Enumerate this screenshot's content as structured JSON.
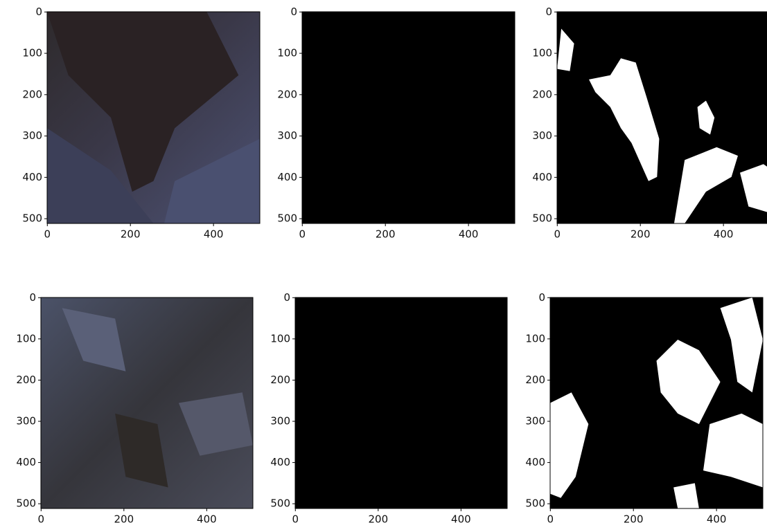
{
  "chart_data": [
    {
      "type": "image",
      "xlim": [
        -0.5,
        511.5
      ],
      "ylim": [
        511.5,
        -0.5
      ],
      "xticks": [
        0,
        200,
        400
      ],
      "yticks": [
        0,
        100,
        200,
        300,
        400,
        500
      ]
    },
    {
      "type": "image",
      "xlim": [
        -0.5,
        511.5
      ],
      "ylim": [
        511.5,
        -0.5
      ],
      "xticks": [
        0,
        200,
        400
      ],
      "yticks": [
        0,
        100,
        200,
        300,
        400,
        500
      ]
    },
    {
      "type": "image",
      "xlim": [
        -0.5,
        511.5
      ],
      "ylim": [
        511.5,
        -0.5
      ],
      "xticks": [
        0,
        200,
        400
      ],
      "yticks": [
        0,
        100,
        200,
        300,
        400,
        500
      ]
    },
    {
      "type": "image",
      "xlim": [
        -0.5,
        511.5
      ],
      "ylim": [
        511.5,
        -0.5
      ],
      "xticks": [
        0,
        200,
        400
      ],
      "yticks": [
        0,
        100,
        200,
        300,
        400,
        500
      ]
    },
    {
      "type": "image",
      "xlim": [
        -0.5,
        511.5
      ],
      "ylim": [
        511.5,
        -0.5
      ],
      "xticks": [
        0,
        200,
        400
      ],
      "yticks": [
        0,
        100,
        200,
        300,
        400,
        500
      ]
    },
    {
      "type": "image",
      "xlim": [
        -0.5,
        511.5
      ],
      "ylim": [
        511.5,
        -0.5
      ],
      "xticks": [
        0,
        200,
        400
      ],
      "yticks": [
        0,
        100,
        200,
        300,
        400,
        500
      ]
    }
  ]
}
